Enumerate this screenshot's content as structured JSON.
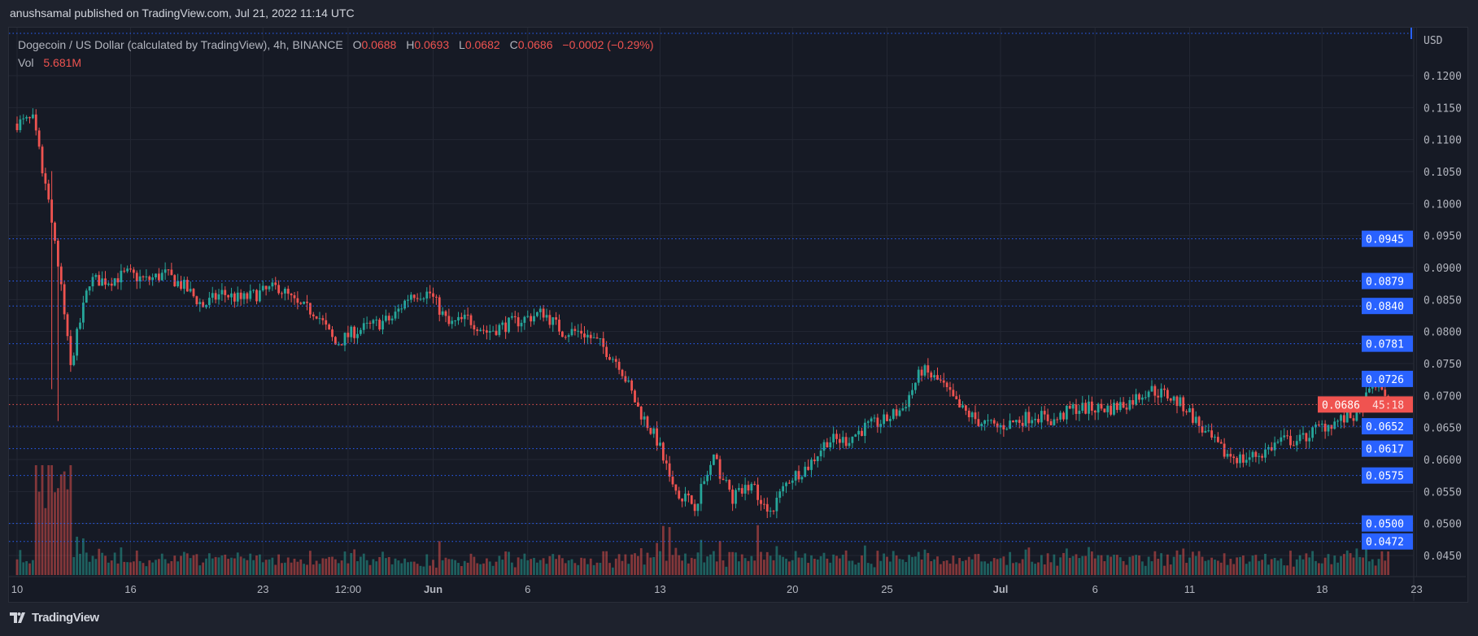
{
  "publisher_line": "anushsamal published on TradingView.com, Jul 21, 2022 11:14 UTC",
  "legend": {
    "symbol": "Dogecoin / US Dollar (calculated by TradingView), 4h, BINANCE",
    "o_label": "O",
    "o": "0.0688",
    "h_label": "H",
    "h": "0.0693",
    "l_label": "L",
    "l": "0.0682",
    "c_label": "C",
    "c": "0.0686",
    "change": "−0.0002 (−0.29%)",
    "vol_label": "Vol",
    "vol": "5.681M"
  },
  "logo_text": "TradingView",
  "colors": {
    "up": "#26a69a",
    "down": "#ef5350",
    "level": "#2962ff",
    "current": "#f05350"
  },
  "chart_data": {
    "type": "candlestick",
    "title": "Dogecoin / US Dollar, 4h, BINANCE",
    "currency_label": "USD",
    "ylim": [
      0.0405,
      0.1245
    ],
    "y_ticks": [
      "0.1200",
      "0.1150",
      "0.1100",
      "0.1050",
      "0.1000",
      "0.0950",
      "0.0900",
      "0.0850",
      "0.0800",
      "0.0750",
      "0.0700",
      "0.0650",
      "0.0600",
      "0.0550",
      "0.0500",
      "0.0450"
    ],
    "x_ticks": [
      {
        "label": "10",
        "day": 0,
        "bold": false
      },
      {
        "label": "16",
        "day": 6,
        "bold": false
      },
      {
        "label": "23",
        "day": 13,
        "bold": false
      },
      {
        "label": "12:00",
        "day": 17.5,
        "bold": false
      },
      {
        "label": "Jun",
        "day": 22,
        "bold": true
      },
      {
        "label": "6",
        "day": 27,
        "bold": false
      },
      {
        "label": "13",
        "day": 34,
        "bold": false
      },
      {
        "label": "20",
        "day": 41,
        "bold": false
      },
      {
        "label": "25",
        "day": 46,
        "bold": false
      },
      {
        "label": "Jul",
        "day": 52,
        "bold": true
      },
      {
        "label": "6",
        "day": 57,
        "bold": false
      },
      {
        "label": "11",
        "day": 62,
        "bold": false
      },
      {
        "label": "18",
        "day": 69,
        "bold": false
      },
      {
        "label": "23",
        "day": 74,
        "bold": false
      }
    ],
    "daily_close_from_may10": [
      0.113,
      0.098,
      0.075,
      0.088,
      0.088,
      0.089,
      0.088,
      0.089,
      0.087,
      0.084,
      0.086,
      0.085,
      0.086,
      0.087,
      0.084,
      0.083,
      0.078,
      0.08,
      0.081,
      0.082,
      0.086,
      0.086,
      0.081,
      0.082,
      0.08,
      0.081,
      0.082,
      0.083,
      0.08,
      0.08,
      0.078,
      0.075,
      0.068,
      0.063,
      0.055,
      0.053,
      0.06,
      0.054,
      0.056,
      0.052,
      0.057,
      0.059,
      0.063,
      0.063,
      0.065,
      0.066,
      0.068,
      0.074,
      0.072,
      0.068,
      0.066,
      0.065,
      0.066,
      0.067,
      0.066,
      0.068,
      0.068,
      0.068,
      0.069,
      0.071,
      0.07,
      0.068,
      0.064,
      0.061,
      0.06,
      0.061,
      0.063,
      0.063,
      0.065,
      0.066,
      0.067,
      0.072,
      0.0686
    ],
    "levels": [
      {
        "label": "0.0945",
        "value": 0.0945
      },
      {
        "label": "0.0879",
        "value": 0.0879
      },
      {
        "label": "0.0840",
        "value": 0.084
      },
      {
        "label": "0.0781",
        "value": 0.0781
      },
      {
        "label": "0.0726",
        "value": 0.0726
      },
      {
        "label": "0.0652",
        "value": 0.0652
      },
      {
        "label": "0.0617",
        "value": 0.0617
      },
      {
        "label": "0.0575",
        "value": 0.0575
      },
      {
        "label": "0.0500",
        "value": 0.05
      },
      {
        "label": "0.0472",
        "value": 0.0472
      }
    ],
    "current_price": {
      "label": "0.0686",
      "value": 0.0686,
      "countdown": "45:18"
    }
  }
}
